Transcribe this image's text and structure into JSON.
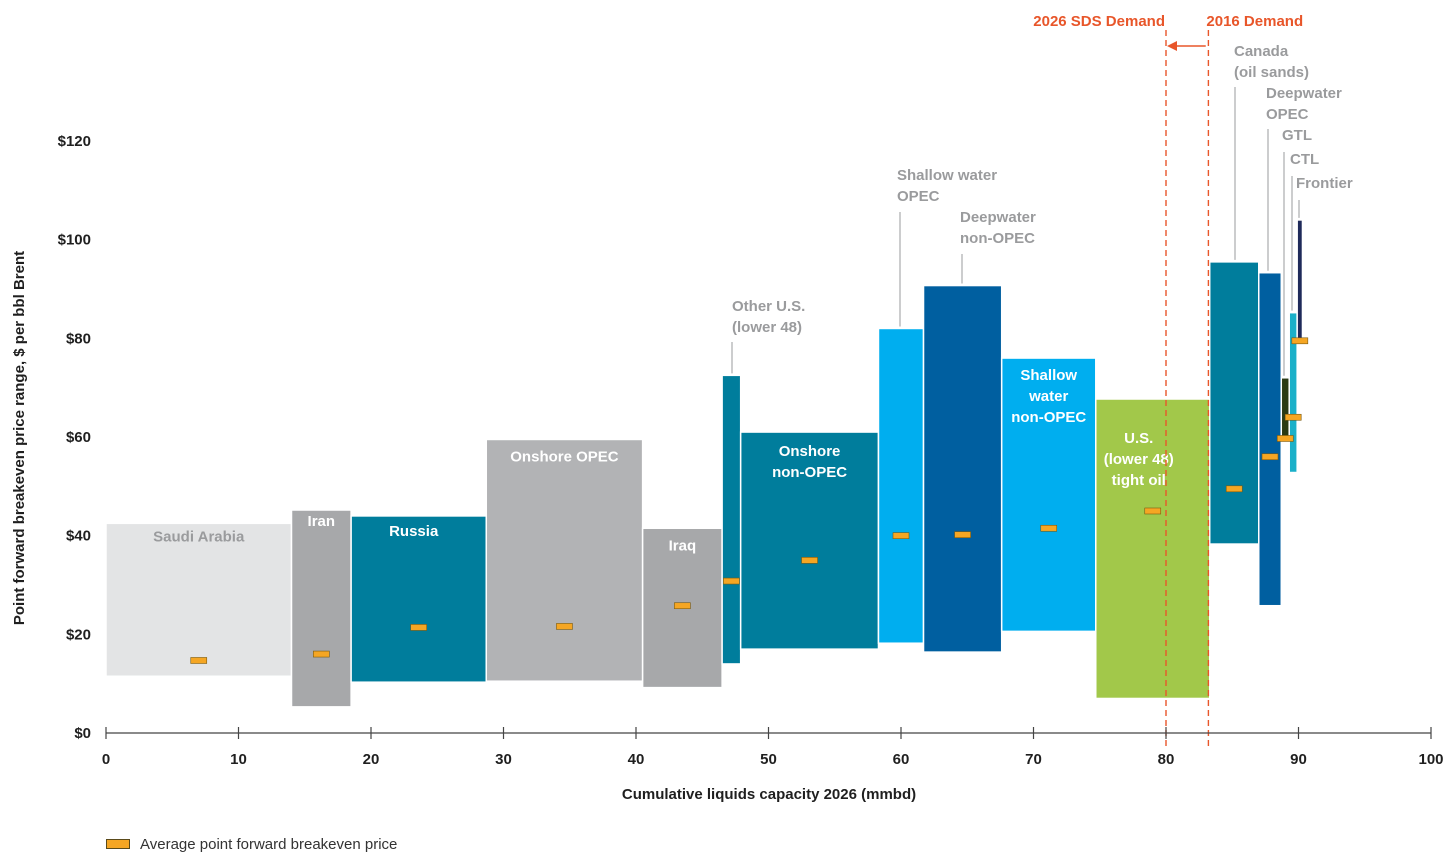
{
  "chart_data": {
    "type": "bar",
    "subtype": "supply-cost-curve (variable-width range bars)",
    "ylabel": "Point forward breakeven price range, $ per bbl Brent",
    "xlabel": "Cumulative liquids capacity 2026 (mmbd)",
    "xlim": [
      0,
      100
    ],
    "ylim": [
      0,
      120
    ],
    "xticks": [
      0,
      10,
      20,
      30,
      40,
      50,
      60,
      70,
      80,
      90,
      100
    ],
    "yticks": [
      0,
      20,
      40,
      60,
      80,
      100,
      120
    ],
    "ytick_labels": [
      "$0",
      "$20",
      "$40",
      "$60",
      "$80",
      "$100",
      "$120"
    ],
    "grid": false,
    "legend": {
      "position": "bottom-left",
      "label": "Average point forward breakeven price"
    },
    "colors": {
      "average_marker": "#f5a623",
      "demand_lines": "#e8562a",
      "callout_text": "#9a9b9d"
    },
    "series": [
      {
        "name": "Saudi Arabia",
        "x_start": 0,
        "x_end": 14.0,
        "low": 11.5,
        "high": 42.5,
        "avg": 14.7,
        "color": "#e3e4e5",
        "label_lines": [
          "Saudi Arabia"
        ],
        "label_color": "#9a9b9d",
        "label_style": "inside"
      },
      {
        "name": "Iran",
        "x_start": 14.0,
        "x_end": 18.5,
        "low": 5.3,
        "high": 45.2,
        "avg": 16.0,
        "color": "#a7a8aa",
        "label_lines": [
          "Iran"
        ],
        "label_color": "#ffffff",
        "label_style": "inside"
      },
      {
        "name": "Russia",
        "x_start": 18.5,
        "x_end": 28.7,
        "low": 10.3,
        "high": 44.0,
        "avg": 21.4,
        "color": "#007d9c",
        "label_lines": [
          "Russia"
        ],
        "label_color": "#ffffff",
        "label_style": "inside"
      },
      {
        "name": "Onshore OPEC",
        "x_start": 28.7,
        "x_end": 40.5,
        "low": 10.5,
        "high": 59.5,
        "avg": 21.6,
        "color": "#b2b3b5",
        "label_lines": [
          "Onshore OPEC"
        ],
        "label_color": "#ffffff",
        "label_style": "inside"
      },
      {
        "name": "Iraq",
        "x_start": 40.5,
        "x_end": 46.5,
        "low": 9.2,
        "high": 41.5,
        "avg": 25.8,
        "color": "#a7a8aa",
        "label_lines": [
          "Iraq"
        ],
        "label_color": "#ffffff",
        "label_style": "inside"
      },
      {
        "name": "Other U.S. (lower 48)",
        "x_start": 46.5,
        "x_end": 47.9,
        "low": 14.0,
        "high": 72.5,
        "avg": 30.8,
        "color": "#007d9c",
        "label_lines": [
          "Other U.S.",
          "(lower 48)"
        ],
        "label_color": "#9a9b9d",
        "label_style": "callout"
      },
      {
        "name": "Onshore non-OPEC",
        "x_start": 47.9,
        "x_end": 58.3,
        "low": 17.0,
        "high": 61.0,
        "avg": 35.0,
        "color": "#007d9c",
        "label_lines": [
          "Onshore",
          "non-OPEC"
        ],
        "label_color": "#ffffff",
        "label_style": "inside"
      },
      {
        "name": "Shallow water OPEC",
        "x_start": 58.3,
        "x_end": 61.7,
        "low": 18.2,
        "high": 82.0,
        "avg": 40.0,
        "color": "#00aeef",
        "label_lines": [
          "Shallow water",
          "OPEC"
        ],
        "label_color": "#9a9b9d",
        "label_style": "callout"
      },
      {
        "name": "Deepwater non-OPEC",
        "x_start": 61.7,
        "x_end": 67.6,
        "low": 16.4,
        "high": 90.7,
        "avg": 40.2,
        "color": "#005fa0",
        "label_lines": [
          "Deepwater",
          "non-OPEC"
        ],
        "label_color": "#9a9b9d",
        "label_style": "callout"
      },
      {
        "name": "Shallow water non-OPEC",
        "x_start": 67.6,
        "x_end": 74.7,
        "low": 20.6,
        "high": 76.0,
        "avg": 41.5,
        "color": "#00aeef",
        "label_lines": [
          "Shallow",
          "water",
          "non-OPEC"
        ],
        "label_color": "#ffffff",
        "label_style": "inside"
      },
      {
        "name": "U.S. (lower 48) tight oil",
        "x_start": 74.7,
        "x_end": 83.3,
        "low": 7.0,
        "high": 67.7,
        "avg": 45.0,
        "color": "#a2c84a",
        "label_lines": [
          "U.S.",
          "(lower 48)",
          "tight oil"
        ],
        "label_color": "#ffffff",
        "label_style": "inside"
      },
      {
        "name": "Canada (oil sands)",
        "x_start": 83.3,
        "x_end": 87.0,
        "low": 38.3,
        "high": 95.5,
        "avg": 49.5,
        "color": "#007d9c",
        "label_lines": [
          "Canada",
          "(oil sands)"
        ],
        "label_color": "#9a9b9d",
        "label_style": "callout"
      },
      {
        "name": "Deepwater OPEC",
        "x_start": 87.0,
        "x_end": 88.7,
        "low": 25.8,
        "high": 93.3,
        "avg": 56.0,
        "color": "#005fa0",
        "label_lines": [
          "Deepwater",
          "OPEC"
        ],
        "label_color": "#9a9b9d",
        "label_style": "callout"
      },
      {
        "name": "GTL",
        "x_start": 88.7,
        "x_end": 89.3,
        "low": 59.5,
        "high": 72.0,
        "avg": 59.7,
        "color": "#2a3a14",
        "label_lines": [
          "GTL"
        ],
        "label_color": "#9a9b9d",
        "label_style": "callout"
      },
      {
        "name": "CTL",
        "x_start": 89.3,
        "x_end": 89.9,
        "low": 52.8,
        "high": 85.2,
        "avg": 64.0,
        "color": "#1ab0c9",
        "label_lines": [
          "CTL"
        ],
        "label_color": "#9a9b9d",
        "label_style": "callout"
      },
      {
        "name": "Frontier",
        "x_start": 89.9,
        "x_end": 90.3,
        "low": 79.0,
        "high": 104.0,
        "avg": 79.5,
        "color": "#1f2a5a",
        "label_lines": [
          "Frontier"
        ],
        "label_color": "#9a9b9d",
        "label_style": "callout"
      }
    ],
    "annotations": [
      {
        "label": "2026 SDS Demand",
        "x": 80.0
      },
      {
        "label": "2016 Demand",
        "x": 83.2
      }
    ],
    "arrow": {
      "from_x": 83.0,
      "to_x": 80.0,
      "meaning": "demand shift"
    }
  }
}
